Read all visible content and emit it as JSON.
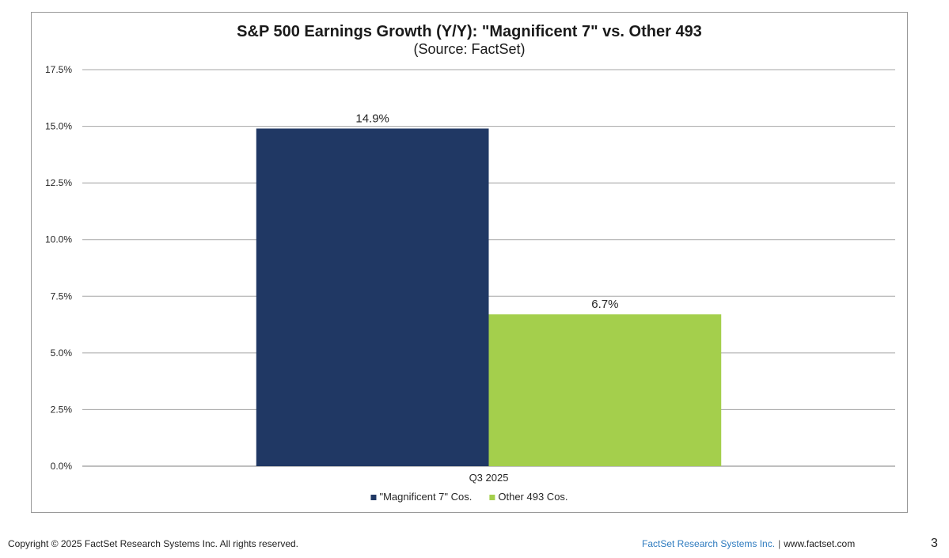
{
  "chart_data": {
    "type": "bar",
    "title": "S&P 500 Earnings Growth (Y/Y): \"Magnificent 7\" vs. Other 493",
    "subtitle": "(Source: FactSet)",
    "categories": [
      "Q3 2025"
    ],
    "series": [
      {
        "name": "\"Magnificent 7\" Cos.",
        "values": [
          14.9
        ],
        "color": "#203864",
        "label": "14.9%"
      },
      {
        "name": "Other 493 Cos.",
        "values": [
          6.7
        ],
        "color": "#a4cf4c",
        "label": "6.7%"
      }
    ],
    "ylim": [
      0,
      17.5
    ],
    "yticks": [
      0,
      2.5,
      5.0,
      7.5,
      10.0,
      12.5,
      15.0,
      17.5
    ],
    "ytick_labels": [
      "0.0%",
      "2.5%",
      "5.0%",
      "7.5%",
      "10.0%",
      "12.5%",
      "15.0%",
      "17.5%"
    ],
    "grid": true,
    "legend_position": "bottom"
  },
  "footer": {
    "copyright": "Copyright © 2025 FactSet Research Systems Inc. All rights reserved.",
    "company": "FactSet Research Systems Inc.",
    "separator": "|",
    "url": "www.factset.com",
    "page_number": "3"
  },
  "colors": {
    "grid": "#a6a6a6",
    "axis": "#7f7f7f",
    "text": "#262626",
    "company_link": "#2e7bbf"
  }
}
